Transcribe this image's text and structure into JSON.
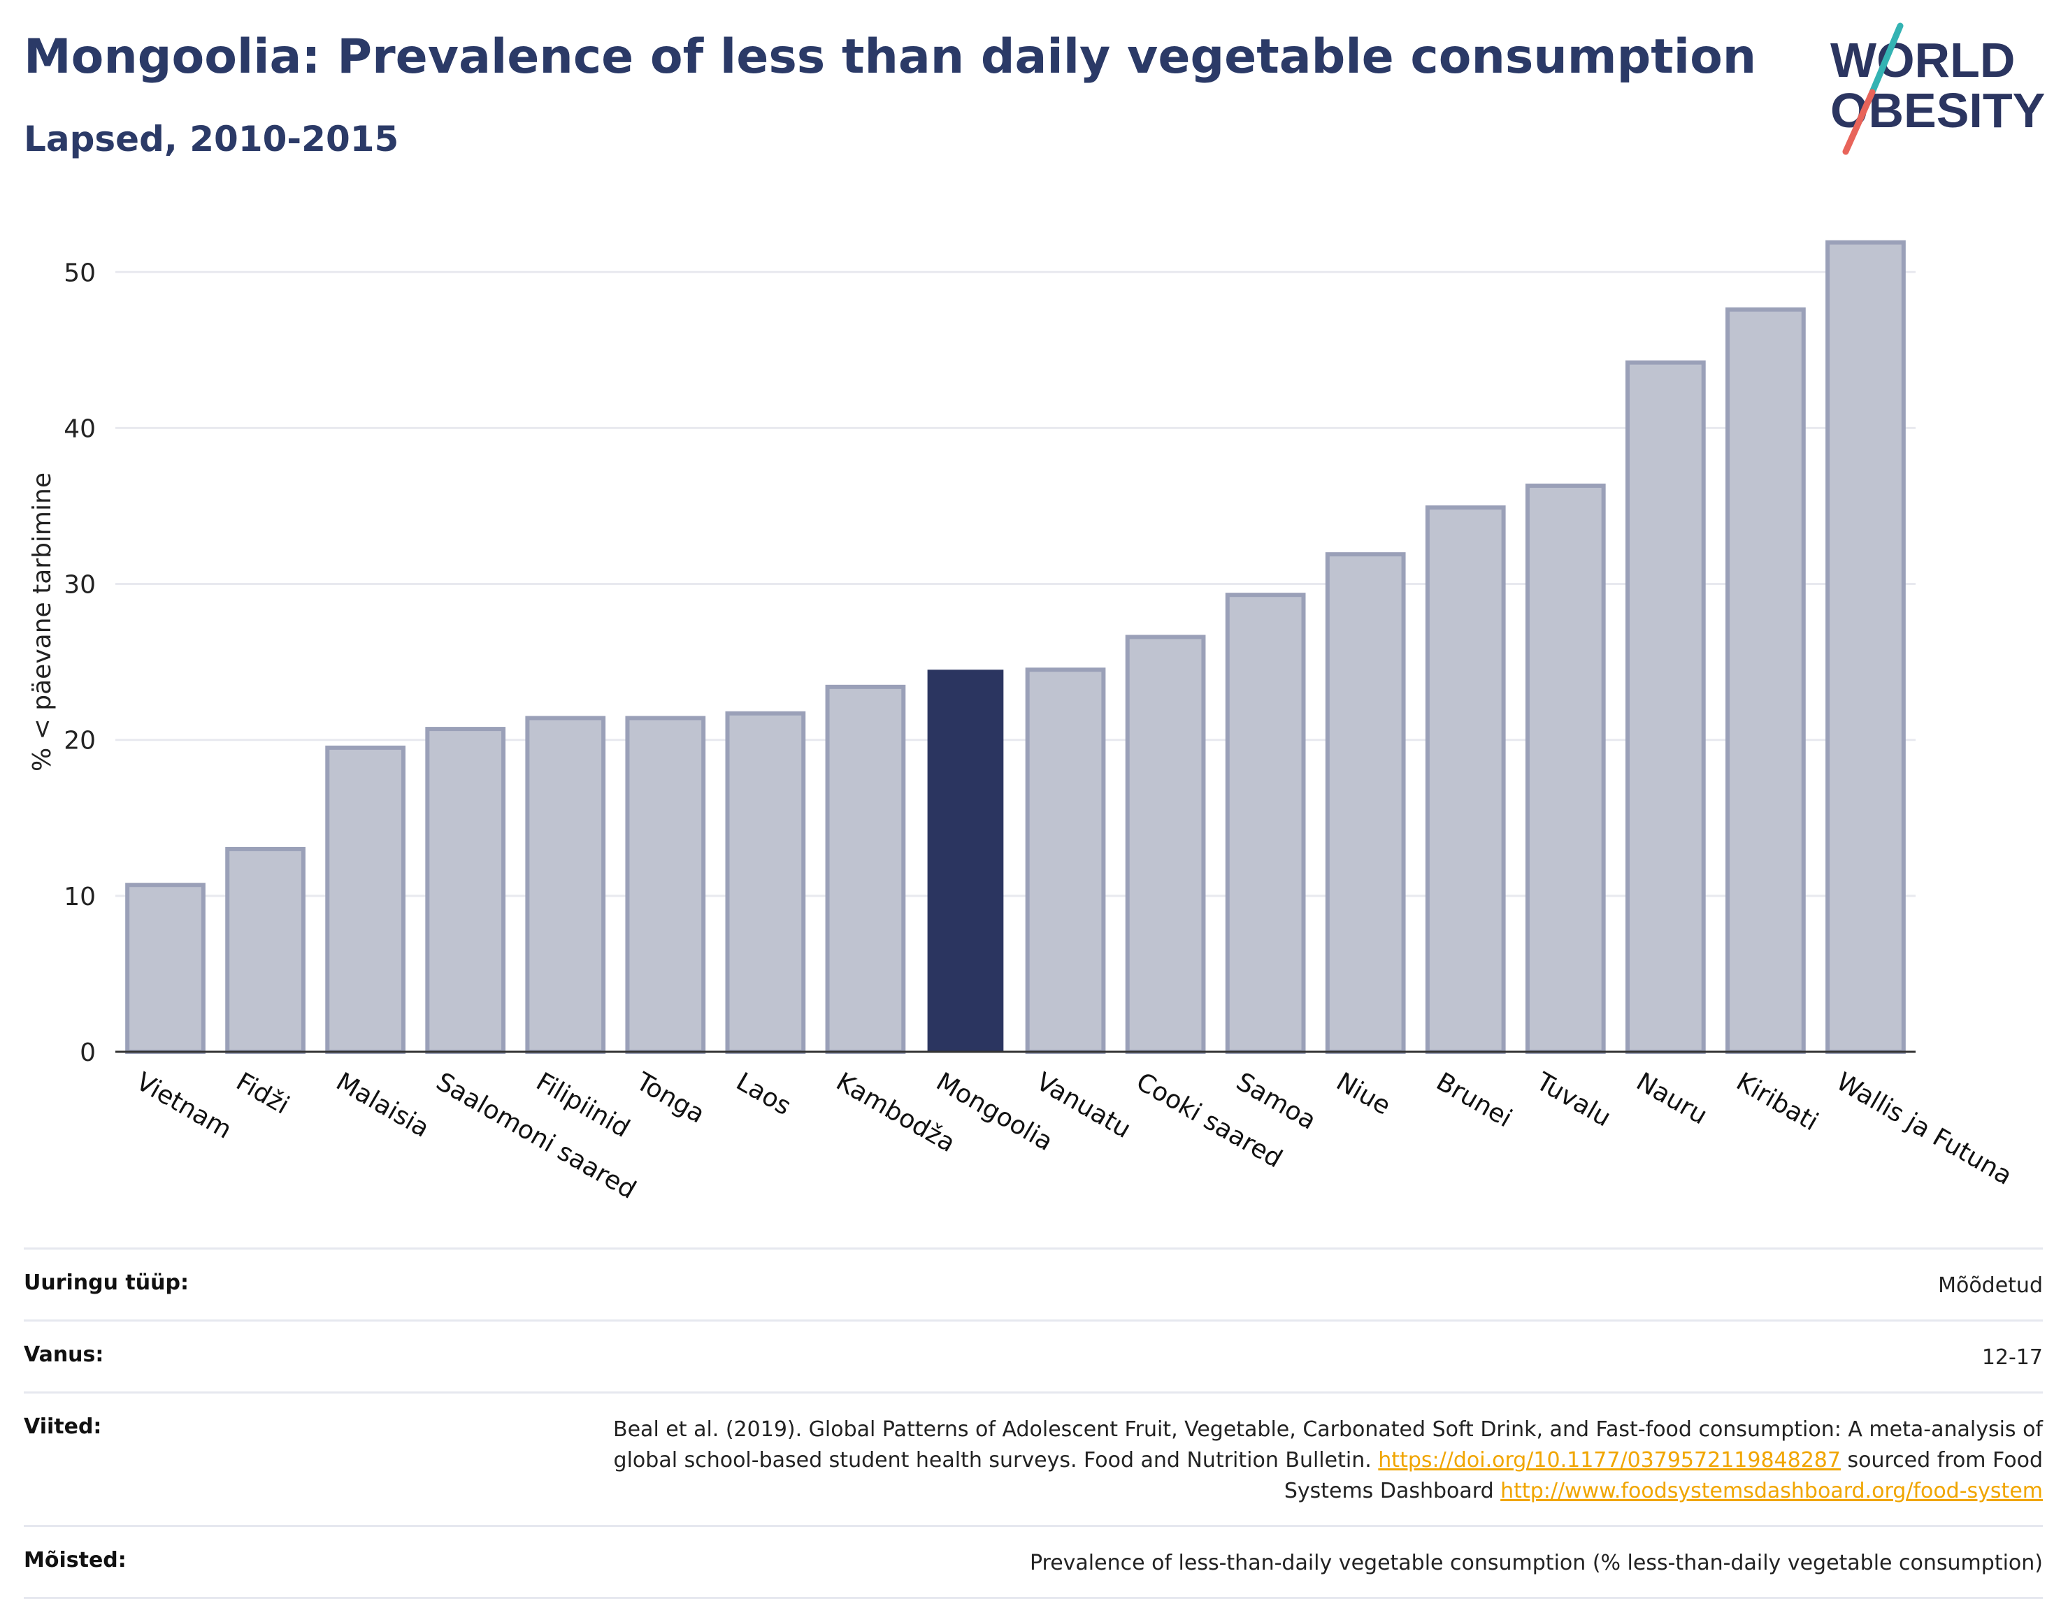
{
  "header": {
    "title": "Mongoolia: Prevalence of less than daily vegetable consumption",
    "subtitle": "Lapsed, 2010-2015"
  },
  "logo": {
    "line1": "WORLD",
    "line2": "OBESITY",
    "icon": "world-obesity-logo"
  },
  "chart_data": {
    "type": "bar",
    "title": "Mongoolia: Prevalence of less than daily vegetable consumption",
    "subtitle": "Lapsed, 2010-2015",
    "ylabel": "% < päevane tarbimine",
    "xlabel": "",
    "ylim": [
      0,
      54
    ],
    "yticks": [
      0,
      10,
      20,
      30,
      40,
      50
    ],
    "grid": true,
    "categories": [
      "Vietnam",
      "Fidži",
      "Malaisia",
      "Saalomoni saared",
      "Filipiinid",
      "Tonga",
      "Laos",
      "Kambodža",
      "Mongoolia",
      "Vanuatu",
      "Cooki saared",
      "Samoa",
      "Niue",
      "Brunei",
      "Tuvalu",
      "Nauru",
      "Kiribati",
      "Wallis ja Futuna"
    ],
    "values": [
      10.7,
      13.0,
      19.5,
      20.7,
      21.4,
      21.4,
      21.7,
      23.4,
      24.5,
      24.5,
      26.6,
      29.3,
      31.9,
      34.9,
      36.3,
      44.2,
      47.6,
      51.9
    ],
    "highlight": "Mongoolia",
    "colors": {
      "bar": "#bfc3d0",
      "bar_border": "#9aa0b8",
      "highlight": "#2b3560",
      "grid": "#e8e9ef",
      "axis": "#333333"
    }
  },
  "meta": {
    "rows": [
      {
        "key": "Uuringu tüüp:",
        "value": "Mõõdetud"
      },
      {
        "key": "Vanus:",
        "value": "12-17"
      },
      {
        "key": "Viited:",
        "value_parts": [
          {
            "text": "Beal et al. (2019). Global Patterns of Adolescent Fruit, Vegetable, Carbonated Soft Drink, and Fast-food consumption: A meta-analysis of global school-based student health surveys. Food and Nutrition Bulletin. "
          },
          {
            "text": "https://doi.org/10.1177/0379572119848287",
            "link": true
          },
          {
            "text": " sourced from Food Systems Dashboard "
          },
          {
            "text": "http://www.foodsystemsdashboard.org/food-system",
            "link": true
          }
        ]
      },
      {
        "key": "Mõisted:",
        "value": "Prevalence of less-than-daily vegetable consumption (% less-than-daily vegetable consumption)"
      }
    ]
  }
}
